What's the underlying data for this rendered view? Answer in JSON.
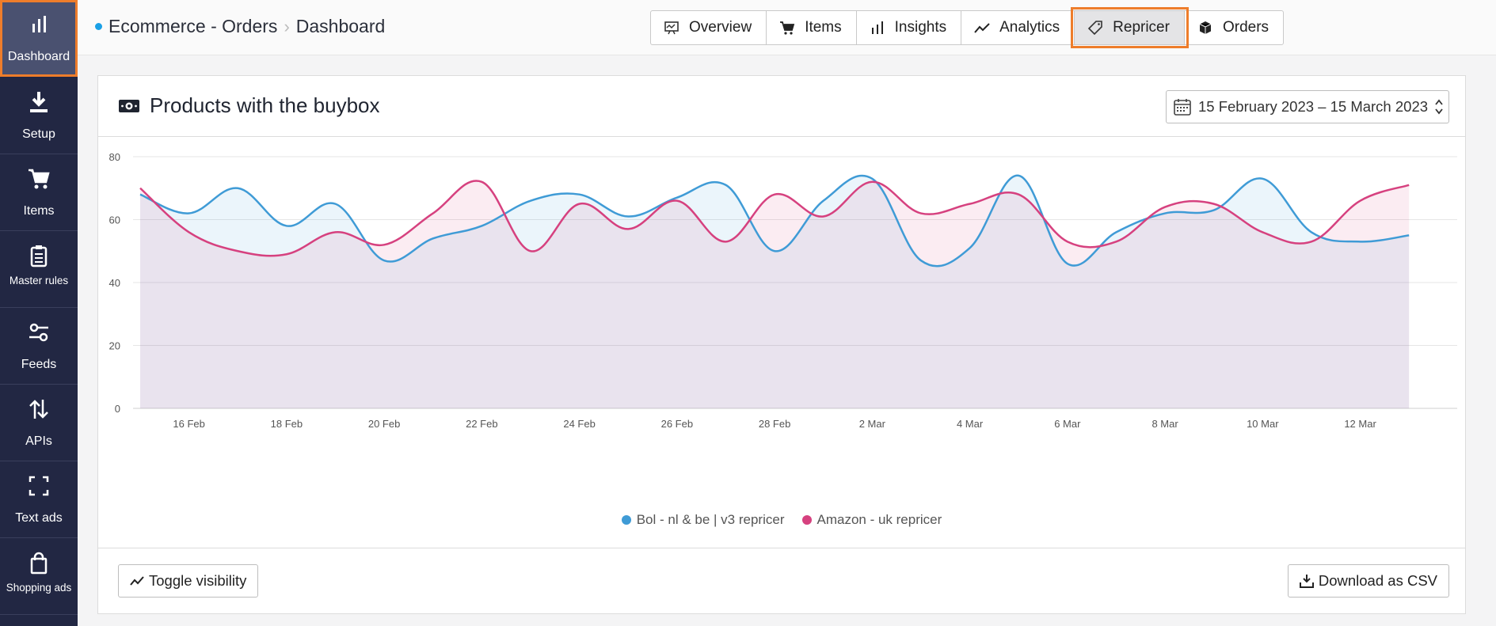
{
  "sidebar": {
    "items": [
      {
        "label": "Dashboard",
        "icon": "bar-chart-icon",
        "active": true
      },
      {
        "label": "Setup",
        "icon": "download-icon"
      },
      {
        "label": "Items",
        "icon": "cart-icon"
      },
      {
        "label": "Master rules",
        "icon": "clipboard-icon"
      },
      {
        "label": "Feeds",
        "icon": "sliders-icon"
      },
      {
        "label": "APIs",
        "icon": "up-down-arrows-icon"
      },
      {
        "label": "Text ads",
        "icon": "focus-frame-icon"
      },
      {
        "label": "Shopping ads",
        "icon": "shopping-bag-icon"
      }
    ]
  },
  "header": {
    "breadcrumb": [
      "Ecommerce - Orders",
      "Dashboard"
    ],
    "tabs": [
      {
        "label": "Overview",
        "icon": "presentation-icon"
      },
      {
        "label": "Items",
        "icon": "cart-icon"
      },
      {
        "label": "Insights",
        "icon": "bar-chart-icon"
      },
      {
        "label": "Analytics",
        "icon": "trend-line-icon"
      },
      {
        "label": "Repricer",
        "icon": "price-tag-icon",
        "active": true
      },
      {
        "label": "Orders",
        "icon": "box-icon"
      }
    ]
  },
  "card": {
    "title": "Products with the buybox",
    "title_icon": "money-icon",
    "date_range": "15 February 2023 – 15 March 2023",
    "toggle_label": "Toggle visibility",
    "download_label": "Download as CSV"
  },
  "colors": {
    "blue": "#3f9bd6",
    "pink": "#d6417f",
    "accent": "#ee7d2b",
    "sidebar": "#222743"
  },
  "chart_data": {
    "type": "area",
    "yticks": [
      0,
      20,
      40,
      60,
      80
    ],
    "ylim": [
      0,
      80
    ],
    "xlim": [
      0,
      26.5
    ],
    "x_ticks": [
      {
        "x": 1,
        "label": "16 Feb"
      },
      {
        "x": 3,
        "label": "18 Feb"
      },
      {
        "x": 5,
        "label": "20 Feb"
      },
      {
        "x": 7,
        "label": "22 Feb"
      },
      {
        "x": 9,
        "label": "24 Feb"
      },
      {
        "x": 11,
        "label": "26 Feb"
      },
      {
        "x": 13,
        "label": "28 Feb"
      },
      {
        "x": 15,
        "label": "2 Mar"
      },
      {
        "x": 17,
        "label": "4 Mar"
      },
      {
        "x": 19,
        "label": "6 Mar"
      },
      {
        "x": 21,
        "label": "8 Mar"
      },
      {
        "x": 23,
        "label": "10 Mar"
      },
      {
        "x": 25,
        "label": "12 Mar"
      }
    ],
    "x": [
      0,
      1,
      2,
      3,
      4,
      5,
      6,
      7,
      8,
      9,
      10,
      11,
      12,
      13,
      14,
      15,
      16,
      17,
      18,
      19,
      20,
      21,
      22,
      23,
      24,
      25,
      26
    ],
    "series": [
      {
        "name": "Bol - nl & be | v3 repricer",
        "color": "#3f9bd6",
        "values": [
          68,
          62,
          70,
          58,
          65,
          47,
          54,
          58,
          66,
          68,
          61,
          67,
          71,
          50,
          66,
          73,
          47,
          51,
          74,
          46,
          56,
          62,
          63,
          73,
          56,
          53,
          55
        ]
      },
      {
        "name": "Amazon - uk repricer",
        "color": "#d6417f",
        "values": [
          70,
          56,
          50,
          49,
          56,
          52,
          62,
          72,
          50,
          65,
          57,
          66,
          53,
          68,
          61,
          72,
          62,
          65,
          68,
          53,
          53,
          64,
          65,
          56,
          53,
          66,
          71
        ]
      }
    ]
  }
}
